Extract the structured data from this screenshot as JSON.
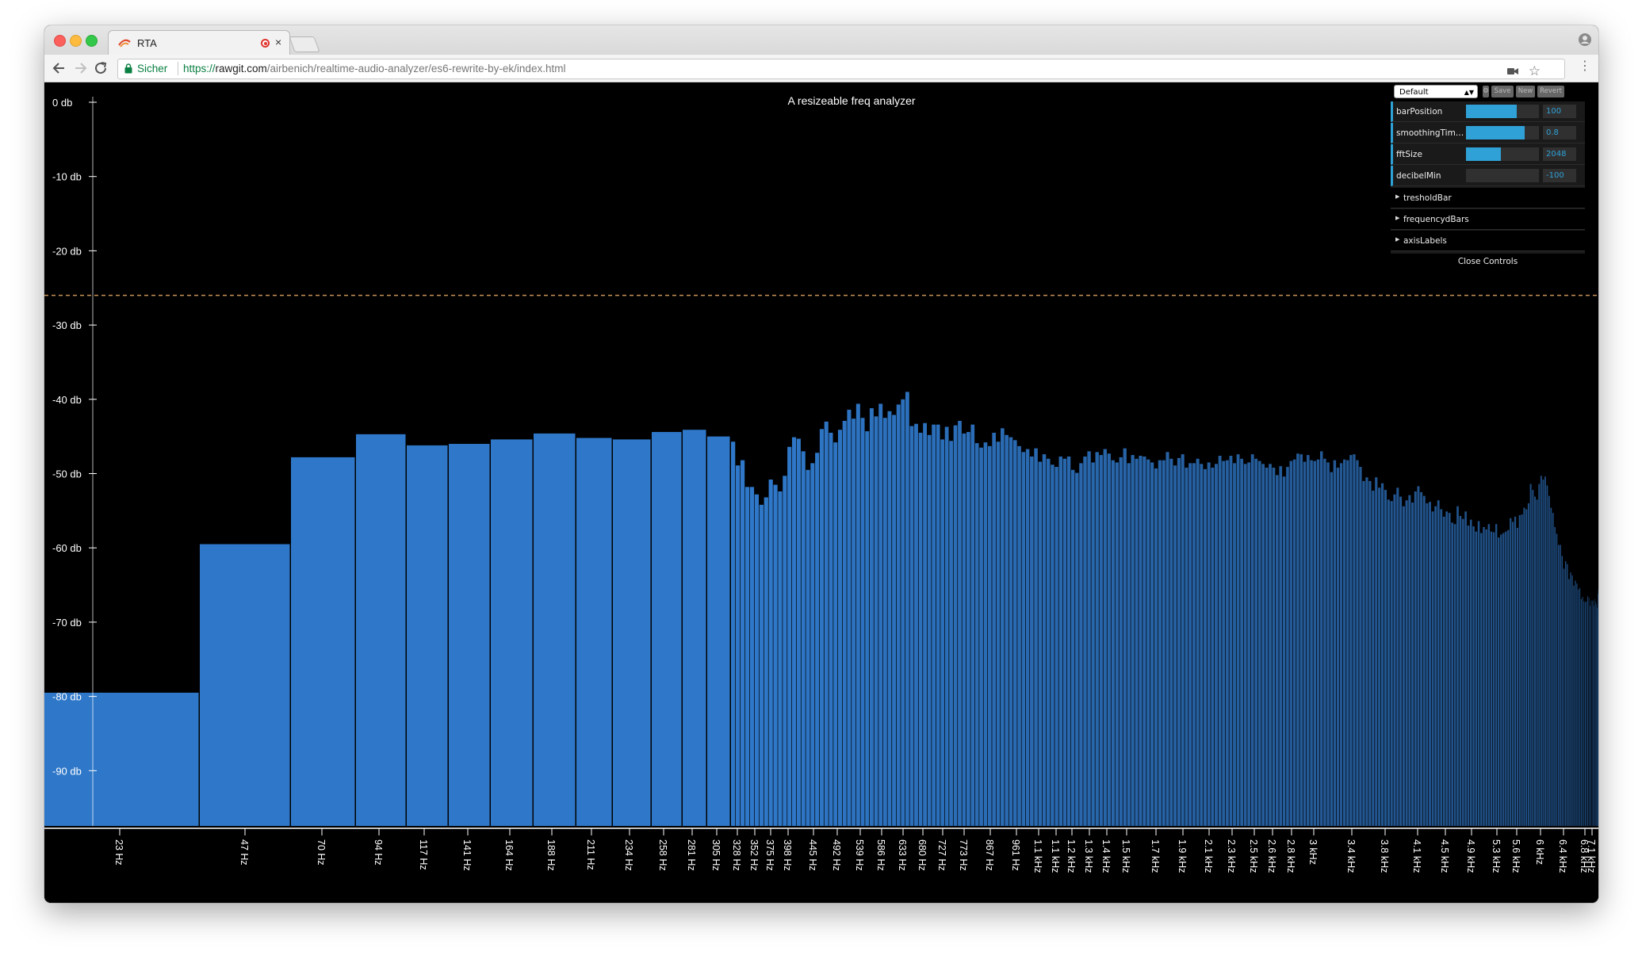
{
  "browser": {
    "tab_title": "RTA",
    "tab_close": "×",
    "secure_label": "Sicher",
    "url_scheme": "https://",
    "url_host": "rawgit.com",
    "url_path": "/airbenich/realtime-audio-analyzer/es6-rewrite-by-ek/index.html",
    "back_icon": "arrow-left-icon",
    "forward_icon": "arrow-right-icon",
    "reload_icon": "reload-icon",
    "star_glyph": "☆",
    "menu_glyph": "⋮"
  },
  "controls": {
    "preset": "Default",
    "buttons": [
      "Save",
      "New",
      "Revert"
    ],
    "params": [
      {
        "label": "barPosition",
        "value": "100",
        "fill": 0.7
      },
      {
        "label": "smoothingTime...",
        "value": "0.8",
        "fill": 0.8
      },
      {
        "label": "fftSize",
        "value": "2048",
        "fill": 0.48
      },
      {
        "label": "decibelMin",
        "value": "-100",
        "fill": 0.0
      }
    ],
    "folders": [
      "tresholdBar",
      "frequencydBars",
      "axisLabels"
    ],
    "close_label": "Close Controls"
  },
  "colors": {
    "bar_low": "#2f78c9",
    "bar_high": "#1e4a7c",
    "threshold": "#c8925a",
    "axis": "#ffffff",
    "gui_accent": "#2fa1d6"
  },
  "chart_data": {
    "type": "bar",
    "title": "A resizeable freq analyzer",
    "y_ticks": [
      "0 db",
      "-10 db",
      "-20 db",
      "-30 db",
      "-40 db",
      "-50 db",
      "-60 db",
      "-70 db",
      "-80 db",
      "-90 db"
    ],
    "ylim": [
      -100,
      0
    ],
    "threshold_db": -26,
    "x_labels": [
      "23 Hz",
      "47 Hz",
      "70 Hz",
      "94 Hz",
      "117 Hz",
      "141 Hz",
      "164 Hz",
      "188 Hz",
      "211 Hz",
      "234 Hz",
      "258 Hz",
      "281 Hz",
      "305 Hz",
      "328 Hz",
      "352 Hz",
      "375 Hz",
      "398 Hz",
      "445 Hz",
      "492 Hz",
      "539 Hz",
      "586 Hz",
      "633 Hz",
      "680 Hz",
      "727 Hz",
      "773 Hz",
      "867 Hz",
      "961 Hz",
      "1.1 kHz",
      "1.1 kHz",
      "1.2 kHz",
      "1.3 kHz",
      "1.4 kHz",
      "1.5 kHz",
      "1.7 kHz",
      "1.9 kHz",
      "2.1 kHz",
      "2.3 kHz",
      "2.5 kHz",
      "2.6 kHz",
      "2.8 kHz",
      "3 kHz",
      "3.4 kHz",
      "3.8 kHz",
      "4.1 kHz",
      "4.5 kHz",
      "4.9 kHz",
      "5.3 kHz",
      "5.6 kHz",
      "6 kHz",
      "6.4 kHz",
      "6.8 kHz",
      "7.1 kHz"
    ],
    "bars_db": [
      -79.5,
      -59.5,
      -47.8,
      -44.7,
      -46.2,
      -46.0,
      -45.4,
      -44.6,
      -45.2,
      -45.4,
      -44.4,
      -44.1,
      -45.0,
      -45.7,
      -48.9,
      -48.2,
      -51.8,
      -51.8,
      -52.8,
      -54.2,
      -53.2,
      -50.8,
      -51.5,
      -52.4,
      -50.3,
      -46.4,
      -45.1,
      -45.3,
      -47.0,
      -49.5,
      -48.6,
      -47.2,
      -44.0,
      -43.0,
      -44.5,
      -45.8,
      -44.1,
      -42.9,
      -41.4,
      -42.6,
      -40.6,
      -42.5,
      -44.3,
      -41.2,
      -42.3,
      -40.6,
      -42.5,
      -41.6,
      -42.1,
      -40.7,
      -40.0,
      -39.0,
      -43.6,
      -43.3,
      -44.5,
      -43.2,
      -44.8,
      -43.4,
      -43.4,
      -45.4,
      -43.7,
      -45.6,
      -43.5,
      -42.9,
      -44.6,
      -44.4,
      -43.4,
      -45.9,
      -46.5,
      -45.8,
      -46.3,
      -44.5,
      -45.7,
      -43.9,
      -44.8,
      -45.1,
      -45.5,
      -46.3,
      -47.1,
      -46.7,
      -47.7,
      -46.6,
      -48.4,
      -47.4,
      -48.0,
      -48.8,
      -49.1,
      -47.7,
      -48.0,
      -47.7,
      -49.5,
      -49.9,
      -48.6,
      -47.7,
      -47.0,
      -48.5,
      -47.1,
      -47.5,
      -46.7,
      -47.3,
      -48.2,
      -48.5,
      -47.8,
      -46.6,
      -48.6,
      -47.5,
      -48.0,
      -47.6,
      -47.7,
      -48.1,
      -48.5,
      -49.3,
      -48.2,
      -48.2,
      -47.1,
      -48.0,
      -48.9,
      -47.9,
      -47.4,
      -49.2,
      -48.6,
      -48.6,
      -48.0,
      -48.7,
      -49.4,
      -48.5,
      -49.2,
      -48.7,
      -47.6,
      -48.3,
      -48.2,
      -47.6,
      -48.6,
      -47.4,
      -48.0,
      -48.7,
      -48.5,
      -47.4,
      -48.0,
      -48.3,
      -48.7,
      -49.2,
      -48.7,
      -49.2,
      -50.2,
      -49.0,
      -50.4,
      -49.1,
      -48.3,
      -48.1,
      -47.3,
      -47.4,
      -48.4,
      -47.5,
      -48.2,
      -48.3,
      -48.1,
      -47.0,
      -48.0,
      -48.5,
      -49.8,
      -48.2,
      -49.2,
      -48.6,
      -48.1,
      -48.2,
      -47.5,
      -47.4,
      -48.2,
      -49.1,
      -51.0,
      -50.5,
      -51.0,
      -52.3,
      -50.5,
      -51.9,
      -51.3,
      -52.2,
      -53.5,
      -53.7,
      -52.8,
      -51.9,
      -53.1,
      -54.4,
      -53.6,
      -52.9,
      -53.9,
      -52.4,
      -51.7,
      -52.5,
      -53.0,
      -54.0,
      -53.8,
      -55.1,
      -54.4,
      -53.6,
      -54.8,
      -55.8,
      -55.1,
      -55.3,
      -56.6,
      -56.8,
      -54.4,
      -55.7,
      -56.1,
      -55.1,
      -57.0,
      -56.2,
      -57.1,
      -57.8,
      -56.4,
      -58.0,
      -57.2,
      -57.5,
      -56.8,
      -57.8,
      -57.9,
      -56.8,
      -58.6,
      -58.2,
      -58.0,
      -57.8,
      -57.6,
      -56.0,
      -56.5,
      -55.8,
      -57.3,
      -55.6,
      -55.5,
      -54.6,
      -54.8,
      -54.0,
      -51.4,
      -52.2,
      -53.1,
      -53.5,
      -51.4,
      -50.3,
      -50.8,
      -50.4,
      -51.6,
      -53.0,
      -54.6,
      -55.3,
      -57.2,
      -58.1,
      -59.6,
      -59.6,
      -61.1,
      -62.8,
      -61.8,
      -62.2,
      -64.2,
      -63.3,
      -63.7,
      -65.1,
      -64.4,
      -64.8,
      -65.6,
      -65.4,
      -66.9,
      -66.6,
      -67.2,
      -67.3,
      -67.2,
      -66.5,
      -66.7,
      -67.8,
      -67.1,
      -67.1,
      -67.1,
      -67.8,
      -66.9,
      -67.3,
      -67.6,
      -68.1,
      -66.2,
      -65.6
    ]
  }
}
